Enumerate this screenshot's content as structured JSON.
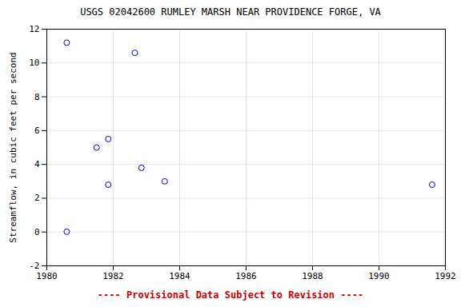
{
  "chart_data": {
    "type": "scatter",
    "title": "USGS 02042600 RUMLEY MARSH NEAR PROVIDENCE FORGE, VA",
    "ylabel": "Streamflow, in cubic feet per second",
    "x": [
      1980.6,
      1980.6,
      1981.5,
      1981.85,
      1981.85,
      1982.65,
      1982.85,
      1983.55,
      1991.6
    ],
    "values": [
      11.2,
      0.02,
      5.0,
      5.5,
      2.8,
      10.6,
      3.8,
      3.0,
      2.8
    ],
    "color": "#0000cc",
    "marker": "circle",
    "xlim": [
      1980,
      1992
    ],
    "ylim": [
      -2,
      12
    ],
    "xticks": [
      1980,
      1982,
      1984,
      1986,
      1988,
      1990,
      1992
    ],
    "yticks": [
      -2,
      0,
      2,
      4,
      6,
      8,
      10,
      12
    ],
    "grid": true,
    "annotations": [
      {
        "text": "---- Provisional Data Subject to Revision ----",
        "color": "#cc0000"
      }
    ]
  }
}
